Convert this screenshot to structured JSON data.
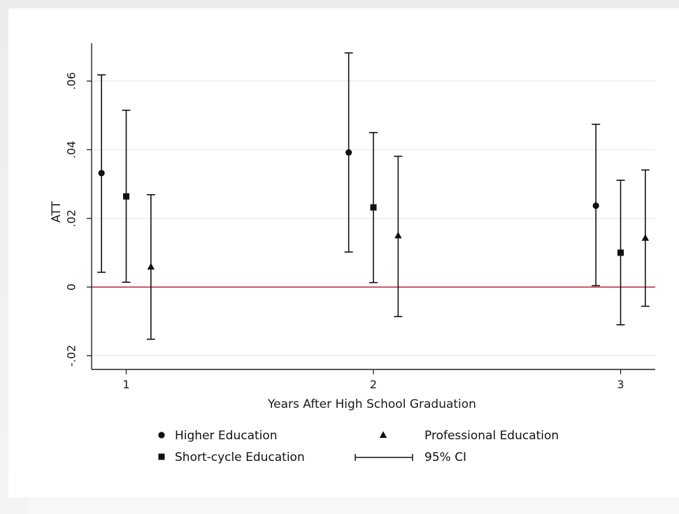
{
  "chart_data": {
    "type": "scatter",
    "title": "",
    "xlabel": "Years After High School Graduation",
    "ylabel": "ATT",
    "x_categories": [
      "1",
      "2",
      "3"
    ],
    "y_ticks": [
      {
        "value": -0.02,
        "label": "-.02"
      },
      {
        "value": 0,
        "label": "0"
      },
      {
        "value": 0.02,
        "label": ".02"
      },
      {
        "value": 0.04,
        "label": ".04"
      },
      {
        "value": 0.06,
        "label": ".06"
      }
    ],
    "ylim": [
      -0.024,
      0.071
    ],
    "xlim": [
      0.86,
      3.14
    ],
    "grid": true,
    "reference_line": {
      "value": 0,
      "color": "#c0334d"
    },
    "series": [
      {
        "name": "Higher Education",
        "marker": "circle",
        "points": [
          {
            "x": 0.9,
            "y": 0.0332,
            "lo": 0.0043,
            "hi": 0.0618
          },
          {
            "x": 1.9,
            "y": 0.0392,
            "lo": 0.0102,
            "hi": 0.0682
          },
          {
            "x": 2.9,
            "y": 0.0237,
            "lo": 0.0004,
            "hi": 0.0474
          }
        ]
      },
      {
        "name": "Short-cycle Education",
        "marker": "square",
        "points": [
          {
            "x": 1.0,
            "y": 0.0264,
            "lo": 0.0014,
            "hi": 0.0515
          },
          {
            "x": 2.0,
            "y": 0.0232,
            "lo": 0.0013,
            "hi": 0.045
          },
          {
            "x": 3.0,
            "y": 0.01,
            "lo": -0.011,
            "hi": 0.0311
          }
        ]
      },
      {
        "name": "Professional Education",
        "marker": "triangle",
        "points": [
          {
            "x": 1.1,
            "y": 0.0059,
            "lo": -0.0152,
            "hi": 0.0269
          },
          {
            "x": 2.1,
            "y": 0.015,
            "lo": -0.0086,
            "hi": 0.0381
          },
          {
            "x": 3.1,
            "y": 0.0143,
            "lo": -0.0056,
            "hi": 0.0341
          }
        ]
      }
    ],
    "legend": {
      "position": "bottom",
      "entries": [
        {
          "label": "Higher Education",
          "marker": "circle"
        },
        {
          "label": "Professional Education",
          "marker": "triangle"
        },
        {
          "label": "Short-cycle Education",
          "marker": "square"
        },
        {
          "label": "95% CI",
          "marker": "ci-line"
        }
      ]
    },
    "colors": {
      "marker": "#111111",
      "grid": "#e6ecec",
      "zero_line": "#c0334d",
      "axis": "#222222"
    }
  }
}
